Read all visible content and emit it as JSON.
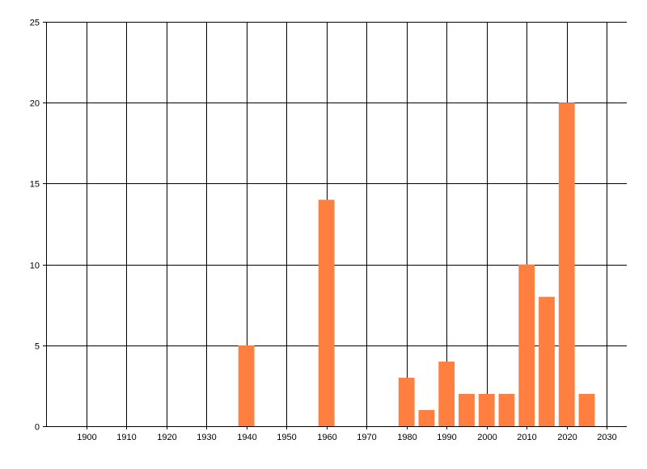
{
  "chart_data": {
    "type": "bar",
    "title": "",
    "xlabel": "",
    "ylabel": "",
    "x": [
      1940,
      1960,
      1980,
      1985,
      1990,
      1995,
      2000,
      2005,
      2010,
      2015,
      2020,
      2025
    ],
    "values": [
      5,
      14,
      3,
      1,
      4,
      2,
      2,
      2,
      10,
      8,
      20,
      2
    ],
    "xlim": [
      1890,
      2035
    ],
    "ylim": [
      0,
      25
    ],
    "xticks": [
      "1900",
      "1910",
      "1920",
      "1930",
      "1940",
      "1950",
      "1960",
      "1970",
      "1980",
      "1990",
      "2000",
      "2010",
      "2020",
      "2030"
    ],
    "yticks": [
      "0",
      "5",
      "10",
      "15",
      "20",
      "25"
    ],
    "bar_width_years": 4,
    "grid": true,
    "bar_color": "#FF7F41",
    "grid_color": "#000000"
  }
}
